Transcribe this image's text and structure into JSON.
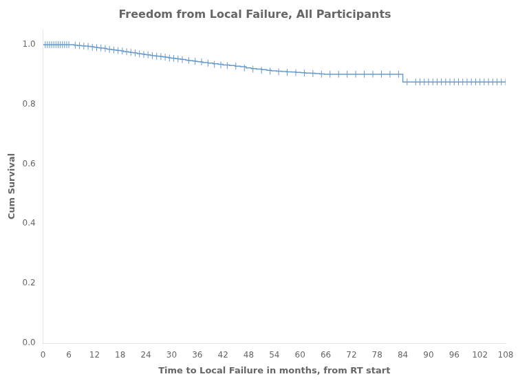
{
  "chart_data": {
    "type": "line",
    "title": "Freedom from Local Failure, All Participants",
    "xlabel": "Time to Local Failure in months, from RT start",
    "ylabel": "Cum Survival",
    "xlim": [
      0,
      108
    ],
    "ylim": [
      0.0,
      1.05
    ],
    "xticks": [
      0,
      6,
      12,
      18,
      24,
      30,
      36,
      42,
      48,
      54,
      60,
      66,
      72,
      78,
      84,
      90,
      96,
      102,
      108
    ],
    "yticks": [
      {
        "value": 0.0,
        "label": "0.0"
      },
      0.2,
      0.4,
      0.6,
      0.8,
      {
        "value": 1.0,
        "label": "1.0"
      }
    ],
    "grid": false,
    "series": [
      {
        "type": "line",
        "line_style": "steps-post",
        "color": "#6699cc",
        "x": [
          0.0,
          6.5,
          7.2,
          8.1,
          9.0,
          9.8,
          10.5,
          11.2,
          11.9,
          12.6,
          13.1,
          13.7,
          14.3,
          14.9,
          15.4,
          16.0,
          16.6,
          17.1,
          17.7,
          18.2,
          18.8,
          19.3,
          19.9,
          20.4,
          21.0,
          21.5,
          22.0,
          22.6,
          23.1,
          23.7,
          24.2,
          25.0,
          25.6,
          26.2,
          26.8,
          27.4,
          28.0,
          28.6,
          29.2,
          29.8,
          30.3,
          30.9,
          31.5,
          32.1,
          32.7,
          33.3,
          33.8,
          34.4,
          35.0,
          35.6,
          36.1,
          36.7,
          37.3,
          38.5,
          39.7,
          40.9,
          42.0,
          43.5,
          44.8,
          46.1,
          47.4,
          48.6,
          49.8,
          51.0,
          52.2,
          53.3,
          54.5,
          55.7,
          56.8,
          58.0,
          59.1,
          60.2,
          61.3,
          62.4,
          63.5,
          64.6,
          65.7,
          66.0,
          84.0,
          108.0
        ],
        "values": [
          1.0,
          1.0,
          0.998,
          0.997,
          0.996,
          0.995,
          0.994,
          0.993,
          0.991,
          0.99,
          0.989,
          0.988,
          0.987,
          0.985,
          0.984,
          0.983,
          0.982,
          0.981,
          0.98,
          0.979,
          0.977,
          0.976,
          0.975,
          0.974,
          0.973,
          0.972,
          0.97,
          0.969,
          0.968,
          0.967,
          0.966,
          0.964,
          0.963,
          0.962,
          0.961,
          0.96,
          0.959,
          0.958,
          0.956,
          0.955,
          0.954,
          0.953,
          0.952,
          0.951,
          0.95,
          0.948,
          0.947,
          0.946,
          0.945,
          0.944,
          0.943,
          0.942,
          0.94,
          0.938,
          0.936,
          0.934,
          0.932,
          0.93,
          0.928,
          0.926,
          0.922,
          0.92,
          0.918,
          0.916,
          0.914,
          0.912,
          0.911,
          0.91,
          0.909,
          0.908,
          0.907,
          0.906,
          0.905,
          0.904,
          0.903,
          0.902,
          0.901,
          0.901,
          0.875,
          0.875
        ]
      },
      {
        "type": "scatter",
        "marker": "vline",
        "color": "#6699cc",
        "x": [
          0.5,
          1.0,
          1.5,
          2.0,
          2.5,
          3.0,
          3.5,
          4.0,
          4.5,
          5.0,
          5.5,
          6.0,
          7.5,
          8.5,
          9.5,
          10.5,
          11.5,
          12.5,
          13.5,
          14.5,
          15.5,
          16.5,
          17.5,
          18.5,
          19.5,
          20.5,
          21.5,
          22.5,
          23.5,
          24.5,
          25.5,
          26.5,
          27.5,
          28.5,
          29.5,
          30.5,
          31.5,
          32.5,
          34.0,
          35.5,
          37.0,
          38.5,
          40.0,
          41.5,
          43.0,
          45.0,
          47.0,
          49.0,
          51.0,
          53.0,
          55.0,
          57.0,
          59.0,
          61.0,
          63.0,
          65.0,
          67.0,
          69.0,
          71.0,
          73.0,
          75.0,
          77.0,
          79.0,
          81.0,
          83.0,
          85.0,
          87.0,
          88.0,
          89.0,
          90.0,
          91.0,
          92.0,
          93.0,
          94.0,
          95.0,
          96.0,
          97.0,
          98.0,
          99.0,
          100.0,
          101.0,
          102.0,
          103.0,
          104.0,
          105.0,
          106.0,
          107.0,
          108.0
        ],
        "values": [
          1.0,
          1.0,
          1.0,
          1.0,
          1.0,
          1.0,
          1.0,
          1.0,
          1.0,
          1.0,
          1.0,
          1.0,
          0.998,
          0.997,
          0.995,
          0.994,
          0.991,
          0.99,
          0.989,
          0.987,
          0.984,
          0.982,
          0.98,
          0.979,
          0.976,
          0.974,
          0.972,
          0.969,
          0.967,
          0.966,
          0.963,
          0.961,
          0.96,
          0.958,
          0.955,
          0.954,
          0.952,
          0.95,
          0.947,
          0.944,
          0.942,
          0.938,
          0.934,
          0.932,
          0.93,
          0.928,
          0.922,
          0.918,
          0.914,
          0.911,
          0.909,
          0.907,
          0.906,
          0.905,
          0.903,
          0.901,
          0.901,
          0.901,
          0.901,
          0.901,
          0.901,
          0.901,
          0.901,
          0.901,
          0.901,
          0.875,
          0.875,
          0.875,
          0.875,
          0.875,
          0.875,
          0.875,
          0.875,
          0.875,
          0.875,
          0.875,
          0.875,
          0.875,
          0.875,
          0.875,
          0.875,
          0.875,
          0.875,
          0.875,
          0.875,
          0.875,
          0.875,
          0.875
        ]
      }
    ]
  }
}
